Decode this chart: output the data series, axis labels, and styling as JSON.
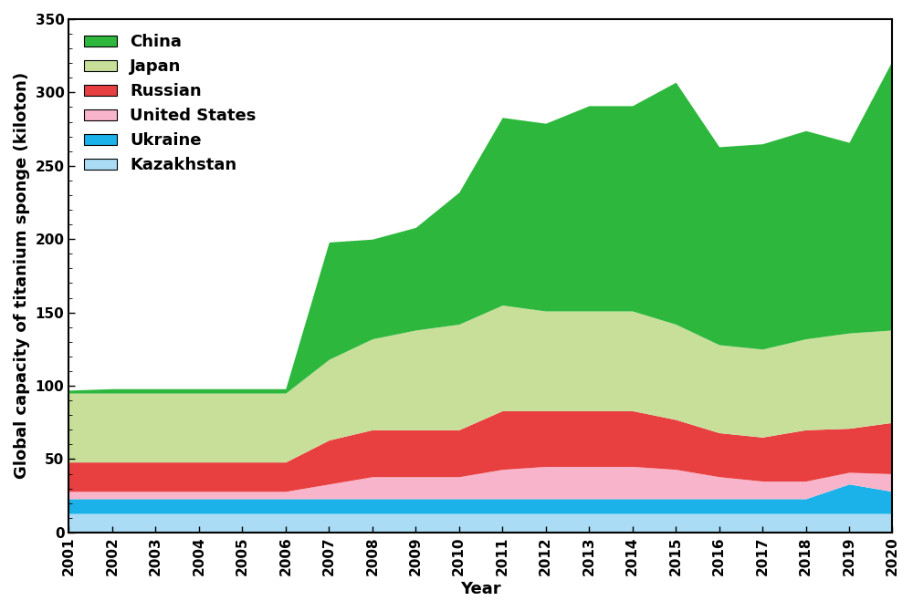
{
  "years": [
    2001,
    2002,
    2003,
    2004,
    2005,
    2006,
    2007,
    2008,
    2009,
    2010,
    2011,
    2012,
    2013,
    2014,
    2015,
    2016,
    2017,
    2018,
    2019,
    2020
  ],
  "countries": [
    "Kazakhstan",
    "Ukraine",
    "United States",
    "Russian",
    "Japan",
    "China"
  ],
  "colors": [
    "#aaddf5",
    "#1ab2e8",
    "#f8b4cb",
    "#e84040",
    "#c8df9a",
    "#2db83d"
  ],
  "data": {
    "Kazakhstan": [
      13,
      13,
      13,
      13,
      13,
      13,
      13,
      13,
      13,
      13,
      13,
      13,
      13,
      13,
      13,
      13,
      13,
      13,
      13,
      13
    ],
    "Ukraine": [
      10,
      10,
      10,
      10,
      10,
      10,
      10,
      10,
      10,
      10,
      10,
      10,
      10,
      10,
      10,
      10,
      10,
      10,
      20,
      15
    ],
    "United States": [
      5,
      5,
      5,
      5,
      5,
      5,
      10,
      15,
      15,
      15,
      20,
      22,
      22,
      22,
      20,
      15,
      12,
      12,
      8,
      12
    ],
    "Russian": [
      20,
      20,
      20,
      20,
      20,
      20,
      30,
      32,
      32,
      32,
      40,
      38,
      38,
      38,
      34,
      30,
      30,
      35,
      30,
      35
    ],
    "Japan": [
      47,
      47,
      47,
      47,
      47,
      47,
      55,
      62,
      68,
      72,
      72,
      68,
      68,
      68,
      65,
      60,
      60,
      62,
      65,
      63
    ],
    "China": [
      2,
      3,
      3,
      3,
      3,
      3,
      80,
      68,
      70,
      90,
      128,
      128,
      140,
      140,
      165,
      135,
      140,
      142,
      130,
      184
    ]
  },
  "ylabel": "Global capacity of titanium sponge (kiloton)",
  "xlabel": "Year",
  "ylim": [
    0,
    350
  ],
  "yticks": [
    0,
    50,
    100,
    150,
    200,
    250,
    300,
    350
  ],
  "legend_order": [
    "China",
    "Japan",
    "Russian",
    "United States",
    "Ukraine",
    "Kazakhstan"
  ],
  "axis_fontsize": 13,
  "legend_fontsize": 13,
  "tick_fontsize": 11
}
